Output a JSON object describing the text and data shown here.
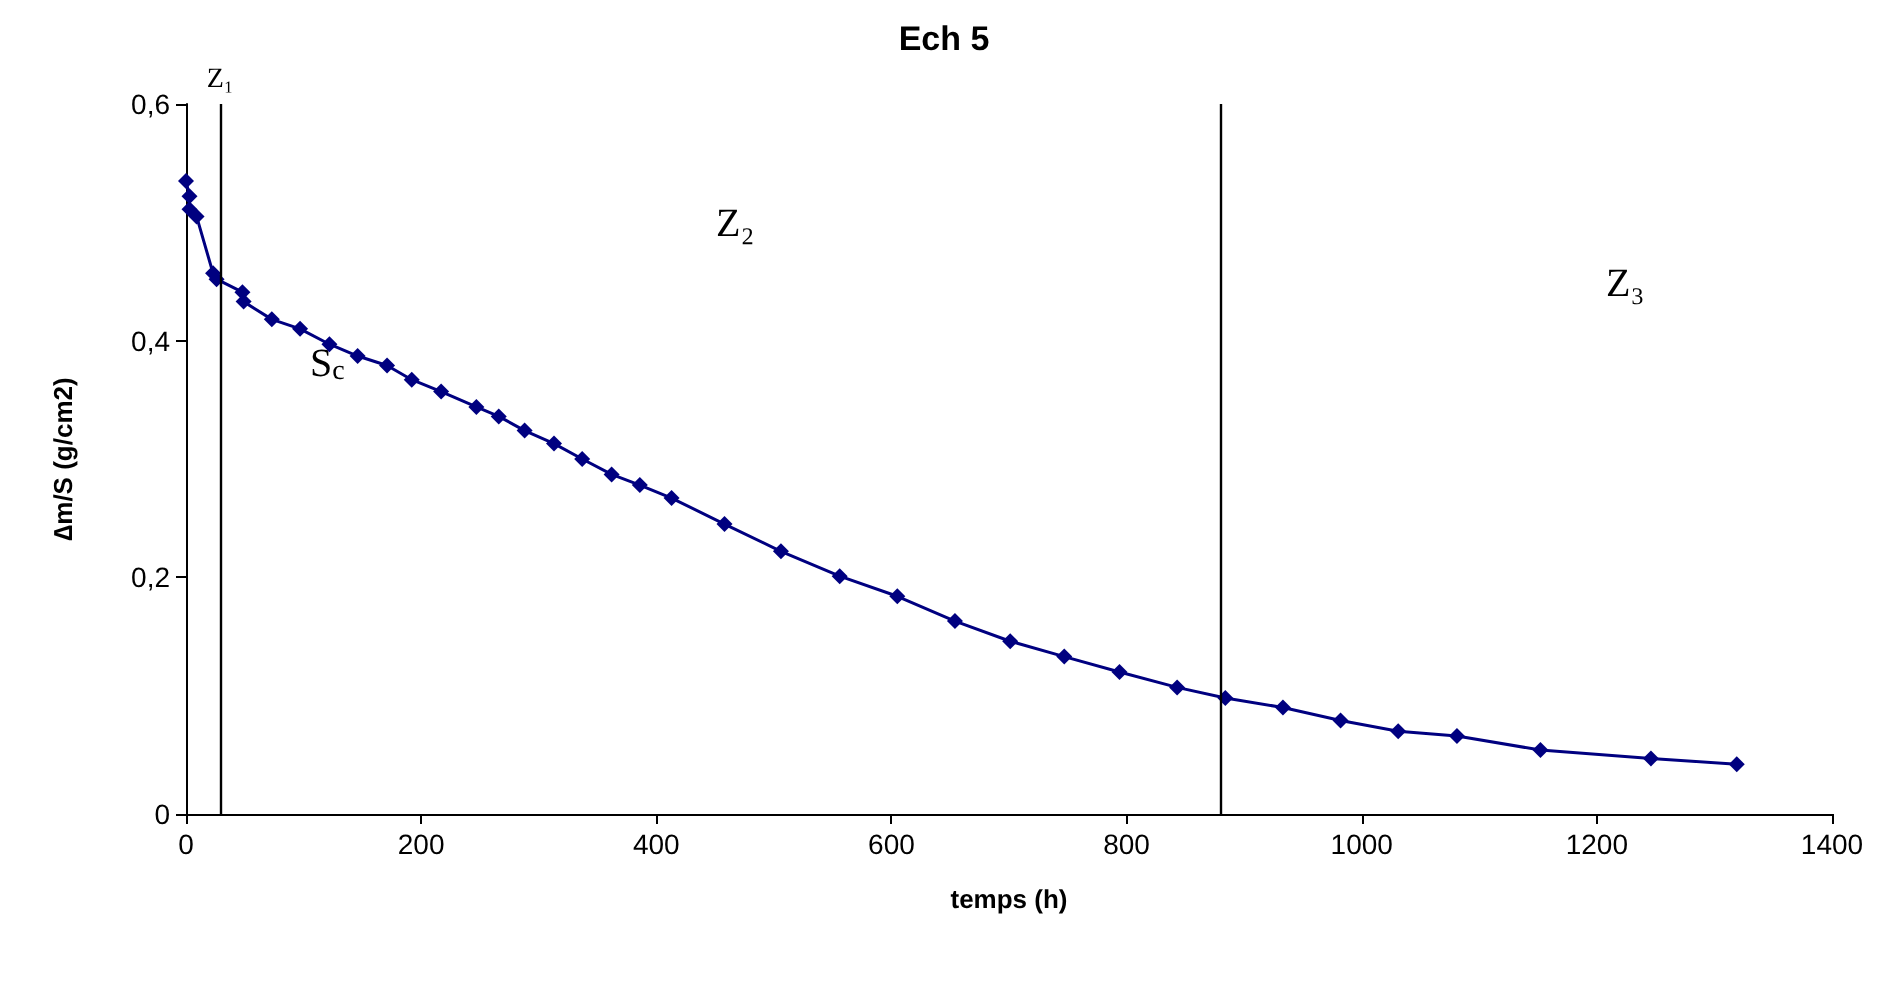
{
  "chart_data": {
    "type": "line",
    "title": "Ech 5",
    "xlabel": "temps (h)",
    "ylabel": "∆m/S (g/cm2)",
    "x": [
      0,
      3,
      3,
      9,
      23,
      26,
      48,
      49,
      73,
      97,
      122,
      146,
      171,
      192,
      217,
      247,
      266,
      288,
      313,
      337,
      362,
      386,
      413,
      458,
      506,
      556,
      605,
      654,
      701,
      747,
      794,
      843,
      884,
      933,
      982,
      1031,
      1081,
      1152,
      1246,
      1319
    ],
    "series": [
      {
        "color": "#000080",
        "values": [
          0.535,
          0.522,
          0.511,
          0.505,
          0.457,
          0.452,
          0.441,
          0.433,
          0.418,
          0.41,
          0.397,
          0.387,
          0.379,
          0.367,
          0.357,
          0.344,
          0.336,
          0.324,
          0.313,
          0.3,
          0.287,
          0.278,
          0.267,
          0.245,
          0.222,
          0.201,
          0.184,
          0.163,
          0.146,
          0.133,
          0.12,
          0.107,
          0.098,
          0.09,
          0.079,
          0.07,
          0.066,
          0.054,
          0.047,
          0.042
        ]
      }
    ],
    "marker": "diamond",
    "xlim": [
      0,
      1400
    ],
    "xticks": [
      0,
      200,
      400,
      600,
      800,
      1000,
      1200,
      1400
    ],
    "ylim": [
      0,
      0.6
    ],
    "yticks": [
      0,
      {
        "value": 0.2,
        "label": "0,2"
      },
      {
        "value": 0.4,
        "label": "0,4"
      },
      {
        "value": 0.6,
        "label": "0,6"
      }
    ],
    "ref_lines": [
      {
        "axis": "x",
        "value": 29,
        "label": "Z₁",
        "color": "#000000"
      },
      {
        "axis": "x",
        "value": 880,
        "label": null,
        "color": "#000000"
      }
    ],
    "annotations": [
      "Z₂",
      "Z₃",
      "S$_{c}$"
    ]
  }
}
